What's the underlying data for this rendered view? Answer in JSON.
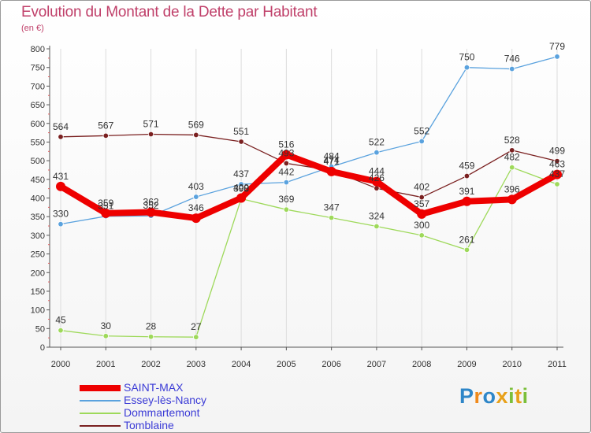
{
  "title": "Evolution du Montant de la Dette par Habitant",
  "subtitle": "(en €)",
  "brand": {
    "letters": [
      {
        "ch": "P",
        "color": "#2e86c8"
      },
      {
        "ch": "r",
        "color": "#f08a1c"
      },
      {
        "ch": "o",
        "color": "#2e86c8"
      },
      {
        "ch": "x",
        "color": "#e8a11a"
      },
      {
        "ch": "i",
        "color": "#7bbf3a"
      },
      {
        "ch": "t",
        "color": "#e8a11a"
      },
      {
        "ch": "i",
        "color": "#7bbf3a"
      }
    ]
  },
  "chart_data": {
    "type": "line",
    "title": "Evolution du Montant de la Dette par Habitant",
    "ylabel": "(en €)",
    "xlabel": "",
    "x": [
      "2000",
      "2001",
      "2002",
      "2003",
      "2004",
      "2005",
      "2006",
      "2007",
      "2008",
      "2009",
      "2010",
      "2011"
    ],
    "ylim": [
      0,
      800
    ],
    "ytick_step": 50,
    "yticks": [
      "0",
      "50",
      "100",
      "150",
      "200",
      "250",
      "300",
      "350",
      "400",
      "450",
      "500",
      "550",
      "600",
      "650",
      "700",
      "750",
      "800"
    ],
    "grid": "vertical",
    "legend_position": "bottom-left",
    "series": [
      {
        "name": "Tomblaine",
        "color": "#7a2020",
        "values": [
          564,
          567,
          571,
          569,
          551,
          493,
          474,
          426,
          402,
          459,
          528,
          499
        ]
      },
      {
        "name": "Dommartemont",
        "color": "#9ed95a",
        "values": [
          45,
          30,
          28,
          27,
          398,
          369,
          347,
          324,
          300,
          261,
          482,
          437
        ]
      },
      {
        "name": "Essey-lès-Nancy",
        "color": "#5aa2de",
        "values": [
          330,
          351,
          352,
          403,
          437,
          442,
          484,
          522,
          552,
          750,
          746,
          779
        ]
      },
      {
        "name": "SAINT-MAX",
        "color": "#ee0000",
        "values": [
          431,
          359,
          362,
          346,
          400,
          516,
          471,
          444,
          357,
          391,
          396,
          463
        ]
      }
    ],
    "legend_order": [
      "SAINT-MAX",
      "Essey-lès-Nancy",
      "Dommartemont",
      "Tomblaine"
    ]
  }
}
